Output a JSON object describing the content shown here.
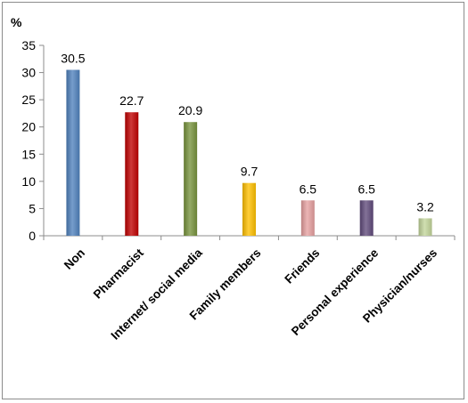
{
  "chart_data": {
    "type": "bar",
    "ylabel": "%",
    "ylim": [
      0,
      35
    ],
    "yticks": [
      0,
      5,
      10,
      15,
      20,
      25,
      30,
      35
    ],
    "grid": false,
    "legend": "none",
    "categories": [
      "Non",
      "Pharmacist",
      "Internet/ social media",
      "Family members",
      "Friends",
      "Personal experience",
      "Physician/nurses"
    ],
    "values": [
      30.5,
      22.7,
      20.9,
      9.7,
      6.5,
      6.5,
      3.2
    ],
    "data_labels": [
      "30.5",
      "22.7",
      "20.9",
      "9.7",
      "6.5",
      "6.5",
      "3.2"
    ],
    "colors": [
      "#4F81BD",
      "#C00000",
      "#77933C",
      "#FFC000",
      "#E6A0A0",
      "#604A7B",
      "#C3D69B"
    ]
  }
}
